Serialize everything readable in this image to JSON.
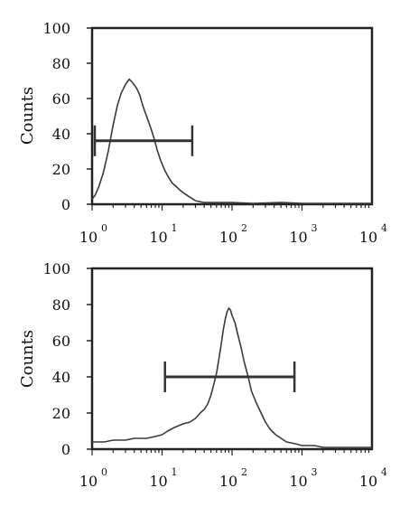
{
  "chart_data": [
    {
      "type": "area",
      "ylabel": "Counts",
      "ylim": [
        0,
        100
      ],
      "xscale": "log",
      "xlim": [
        1,
        10000
      ],
      "yticks": [
        "0",
        "20",
        "40",
        "60",
        "80",
        "100"
      ],
      "xticks": [
        {
          "base": "10",
          "exp": "0"
        },
        {
          "base": "10",
          "exp": "1"
        },
        {
          "base": "10",
          "exp": "2"
        },
        {
          "base": "10",
          "exp": "3"
        },
        {
          "base": "10",
          "exp": "4"
        }
      ],
      "gate": {
        "x_start": 1.0,
        "x_end": 27,
        "y": 36
      },
      "series": [
        {
          "x": [
            1.0,
            1.1,
            1.25,
            1.45,
            1.7,
            2.0,
            2.3,
            2.6,
            3.0,
            3.4,
            3.8,
            4.3,
            4.8,
            5.3,
            6.0,
            6.8,
            7.6,
            8.5,
            9.5,
            11,
            12.5,
            14,
            16,
            18,
            21,
            25,
            30,
            40,
            60,
            100,
            200,
            500,
            1000,
            3000,
            10000
          ],
          "values": [
            3,
            5,
            10,
            18,
            30,
            45,
            56,
            63,
            68,
            71,
            69,
            66,
            62,
            56,
            50,
            44,
            38,
            31,
            25,
            19,
            15,
            12,
            10,
            8,
            6,
            4,
            2,
            1,
            1,
            1,
            0.5,
            1,
            0.5,
            0.5,
            0.5
          ]
        }
      ]
    },
    {
      "type": "area",
      "ylabel": "Counts",
      "ylim": [
        0,
        100
      ],
      "xscale": "log",
      "xlim": [
        1,
        10000
      ],
      "yticks": [
        "0",
        "20",
        "40",
        "60",
        "80",
        "100"
      ],
      "xticks": [
        {
          "base": "10",
          "exp": "0"
        },
        {
          "base": "10",
          "exp": "1"
        },
        {
          "base": "10",
          "exp": "2"
        },
        {
          "base": "10",
          "exp": "3"
        },
        {
          "base": "10",
          "exp": "4"
        }
      ],
      "gate": {
        "x_start": 11,
        "x_end": 780,
        "y": 40
      },
      "series": [
        {
          "x": [
            1.0,
            1.5,
            2,
            3,
            4,
            6,
            8,
            10,
            12,
            15,
            20,
            25,
            30,
            35,
            40,
            45,
            50,
            55,
            60,
            65,
            70,
            75,
            80,
            85,
            90,
            95,
            100,
            110,
            120,
            135,
            150,
            170,
            190,
            220,
            260,
            300,
            350,
            420,
            500,
            600,
            800,
            1000,
            1500,
            2000,
            3000,
            5000,
            10000
          ],
          "values": [
            4,
            4,
            5,
            5,
            6,
            6,
            7,
            8,
            10,
            12,
            14,
            15,
            17,
            20,
            22,
            25,
            30,
            36,
            42,
            50,
            58,
            66,
            72,
            76,
            78,
            77,
            74,
            70,
            64,
            56,
            48,
            40,
            32,
            26,
            20,
            15,
            11,
            8,
            6,
            4,
            3,
            2,
            2,
            1,
            1,
            1,
            1
          ]
        }
      ]
    }
  ]
}
